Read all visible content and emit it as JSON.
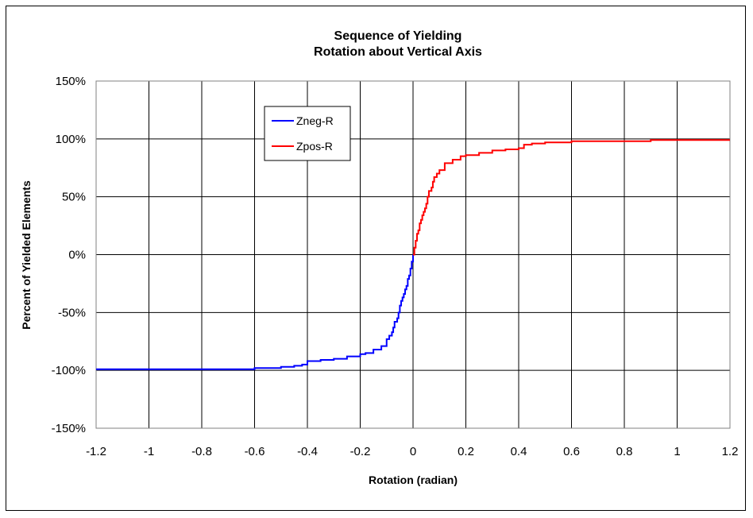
{
  "chart_data": {
    "type": "line",
    "title": "Sequence of Yielding",
    "subtitle": "Rotation about Vertical Axis",
    "xlabel": "Rotation (radian)",
    "ylabel": "Percent of Yielded Elements",
    "xlim": [
      -1.2,
      1.2
    ],
    "ylim": [
      -150,
      150
    ],
    "x_ticks": [
      "-1.2",
      "-1",
      "-0.8",
      "-0.6",
      "-0.4",
      "-0.2",
      "0",
      "0.2",
      "0.4",
      "0.6",
      "0.8",
      "1",
      "1.2"
    ],
    "y_ticks": [
      "150%",
      "100%",
      "50%",
      "0%",
      "-50%",
      "-100%",
      "-150%"
    ],
    "grid": true,
    "legend_position": "top-left",
    "series": [
      {
        "name": "Zneg-R",
        "color": "#0000ff",
        "step": true,
        "x": [
          -1.2,
          -0.9,
          -0.6,
          -0.5,
          -0.45,
          -0.42,
          -0.4,
          -0.35,
          -0.3,
          -0.25,
          -0.2,
          -0.18,
          -0.15,
          -0.12,
          -0.1,
          -0.09,
          -0.08,
          -0.075,
          -0.07,
          -0.06,
          -0.055,
          -0.05,
          -0.045,
          -0.04,
          -0.035,
          -0.03,
          -0.025,
          -0.02,
          -0.015,
          -0.01,
          -0.005,
          0
        ],
        "y": [
          -99,
          -99,
          -98,
          -97,
          -96,
          -95,
          -92,
          -91,
          -90,
          -88,
          -86,
          -85,
          -82,
          -79,
          -73,
          -70,
          -67,
          -63,
          -58,
          -55,
          -50,
          -44,
          -40,
          -37,
          -34,
          -30,
          -27,
          -21,
          -18,
          -12,
          -6,
          0
        ]
      },
      {
        "name": "Zpos-R",
        "color": "#ff0000",
        "step": true,
        "x": [
          0,
          0.005,
          0.01,
          0.015,
          0.02,
          0.025,
          0.03,
          0.035,
          0.04,
          0.045,
          0.05,
          0.055,
          0.06,
          0.07,
          0.075,
          0.08,
          0.09,
          0.1,
          0.12,
          0.15,
          0.18,
          0.2,
          0.25,
          0.3,
          0.35,
          0.4,
          0.42,
          0.45,
          0.5,
          0.6,
          0.9,
          1.2
        ],
        "y": [
          0,
          6,
          12,
          18,
          21,
          27,
          30,
          34,
          37,
          40,
          44,
          50,
          55,
          58,
          63,
          67,
          70,
          73,
          79,
          82,
          85,
          86,
          88,
          90,
          91,
          92,
          95,
          96,
          97,
          98,
          99,
          99
        ]
      }
    ]
  }
}
